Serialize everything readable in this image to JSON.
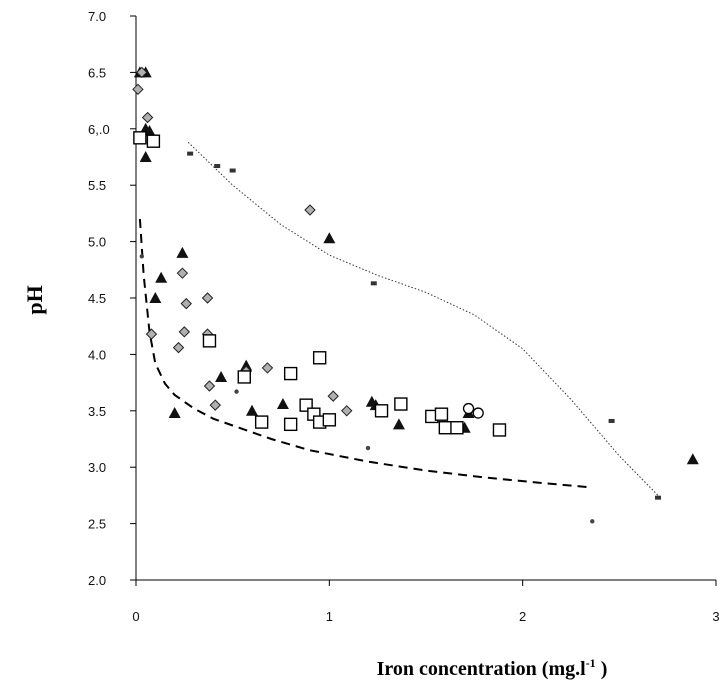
{
  "chart_data": {
    "type": "scatter",
    "title": "",
    "ylabel": "pH",
    "xlabel": "Iron concentration (mg.l",
    "xlabel_sup": "-1",
    "xlabel_end": " )",
    "xlim": [
      0,
      3
    ],
    "ylim": [
      2.0,
      7.0
    ],
    "x_ticks": [
      {
        "value": 0,
        "label": "0"
      },
      {
        "value": 1,
        "label": "1"
      },
      {
        "value": 2,
        "label": "2"
      },
      {
        "value": 3,
        "label": "3"
      }
    ],
    "y_ticks": [
      {
        "value": 2.0,
        "label": "2.0"
      },
      {
        "value": 2.5,
        "label": "2.5"
      },
      {
        "value": 3.0,
        "label": "3.0"
      },
      {
        "value": 3.5,
        "label": "3.5"
      },
      {
        "value": 4.0,
        "label": "4.0"
      },
      {
        "value": 4.5,
        "label": "4.5"
      },
      {
        "value": 5.0,
        "label": "5.0"
      },
      {
        "value": 5.5,
        "label": "5.5"
      },
      {
        "value": 6.0,
        "label": "6,.0"
      },
      {
        "value": 6.5,
        "label": "6.5"
      },
      {
        "value": 7.0,
        "label": "7.0"
      }
    ],
    "grid": false,
    "series": [
      {
        "marker": "triangle",
        "points": [
          [
            0.02,
            6.5
          ],
          [
            0.05,
            6.5
          ],
          [
            0.05,
            6.0
          ],
          [
            0.07,
            5.98
          ],
          [
            0.05,
            5.75
          ],
          [
            0.1,
            4.5
          ],
          [
            0.13,
            4.68
          ],
          [
            0.2,
            3.48
          ],
          [
            0.24,
            4.9
          ],
          [
            0.44,
            3.8
          ],
          [
            0.57,
            3.9
          ],
          [
            0.6,
            3.5
          ],
          [
            0.76,
            3.56
          ],
          [
            1.0,
            5.03
          ],
          [
            1.22,
            3.58
          ],
          [
            1.24,
            3.55
          ],
          [
            1.36,
            3.38
          ],
          [
            1.7,
            3.35
          ],
          [
            1.72,
            3.48
          ],
          [
            2.88,
            3.07
          ]
        ]
      },
      {
        "marker": "diamond",
        "points": [
          [
            0.01,
            6.35
          ],
          [
            0.03,
            6.5
          ],
          [
            0.06,
            6.1
          ],
          [
            0.08,
            4.18
          ],
          [
            0.22,
            4.06
          ],
          [
            0.24,
            4.72
          ],
          [
            0.25,
            4.2
          ],
          [
            0.26,
            4.45
          ],
          [
            0.37,
            4.5
          ],
          [
            0.37,
            4.18
          ],
          [
            0.38,
            3.72
          ],
          [
            0.41,
            3.55
          ],
          [
            0.57,
            3.85
          ],
          [
            0.68,
            3.88
          ],
          [
            0.9,
            5.28
          ],
          [
            1.02,
            3.63
          ],
          [
            1.09,
            3.5
          ]
        ]
      },
      {
        "marker": "square-open",
        "points": [
          [
            0.02,
            5.92
          ],
          [
            0.09,
            5.89
          ],
          [
            0.38,
            4.12
          ],
          [
            0.56,
            3.8
          ],
          [
            0.65,
            3.4
          ],
          [
            0.8,
            3.83
          ],
          [
            0.8,
            3.38
          ],
          [
            0.88,
            3.55
          ],
          [
            0.92,
            3.47
          ],
          [
            0.95,
            3.4
          ],
          [
            0.95,
            3.97
          ],
          [
            1.0,
            3.42
          ],
          [
            1.27,
            3.5
          ],
          [
            1.37,
            3.56
          ],
          [
            1.53,
            3.45
          ],
          [
            1.58,
            3.47
          ],
          [
            1.6,
            3.35
          ],
          [
            1.66,
            3.35
          ],
          [
            1.88,
            3.33
          ]
        ]
      },
      {
        "marker": "circle-open",
        "points": [
          [
            1.72,
            3.52
          ],
          [
            1.77,
            3.48
          ]
        ]
      },
      {
        "marker": "small-square",
        "points": [
          [
            0.28,
            5.78
          ],
          [
            0.42,
            5.67
          ],
          [
            0.5,
            5.63
          ],
          [
            1.23,
            4.63
          ],
          [
            2.46,
            3.41
          ],
          [
            2.7,
            2.73
          ]
        ]
      },
      {
        "marker": "dot",
        "points": [
          [
            0.03,
            4.87
          ],
          [
            0.52,
            3.67
          ],
          [
            1.2,
            3.17
          ],
          [
            2.36,
            2.52
          ]
        ]
      }
    ],
    "trend_lines": [
      {
        "style": "dashed",
        "points": [
          [
            0.02,
            5.2
          ],
          [
            0.04,
            4.7
          ],
          [
            0.07,
            4.2
          ],
          [
            0.1,
            3.92
          ],
          [
            0.15,
            3.74
          ],
          [
            0.2,
            3.64
          ],
          [
            0.3,
            3.52
          ],
          [
            0.4,
            3.43
          ],
          [
            0.5,
            3.37
          ],
          [
            0.7,
            3.25
          ],
          [
            0.9,
            3.15
          ],
          [
            1.2,
            3.05
          ],
          [
            1.5,
            2.97
          ],
          [
            1.8,
            2.91
          ],
          [
            2.1,
            2.86
          ],
          [
            2.36,
            2.82
          ]
        ]
      },
      {
        "style": "dotted",
        "points": [
          [
            0.27,
            5.88
          ],
          [
            0.5,
            5.5
          ],
          [
            0.75,
            5.15
          ],
          [
            1.0,
            4.88
          ],
          [
            1.25,
            4.7
          ],
          [
            1.5,
            4.55
          ],
          [
            1.75,
            4.35
          ],
          [
            2.0,
            4.05
          ],
          [
            2.25,
            3.6
          ],
          [
            2.5,
            3.1
          ],
          [
            2.7,
            2.75
          ]
        ]
      }
    ]
  }
}
